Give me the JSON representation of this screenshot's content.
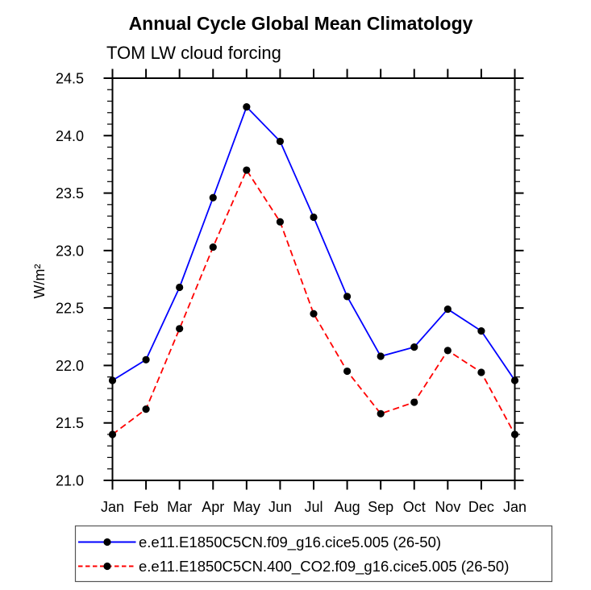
{
  "chart_data": {
    "type": "line",
    "title": "Annual Cycle Global Mean Climatology",
    "subtitle": "TOM LW cloud forcing",
    "ylabel": "W/m²",
    "categories": [
      "Jan",
      "Feb",
      "Mar",
      "Apr",
      "May",
      "Jun",
      "Jul",
      "Aug",
      "Sep",
      "Oct",
      "Nov",
      "Dec",
      "Jan"
    ],
    "ylim": [
      21.0,
      24.5
    ],
    "y_major_step": 0.5,
    "y_minor_step": 0.1,
    "grid": false,
    "legend_position": "bottom",
    "frame_color": "#000000",
    "marker_color": "#000000",
    "series": [
      {
        "name": "e.e11.E1850C5CN.f09_g16.cice5.005 (26-50)",
        "line_color": "#0000ff",
        "line_style": "solid",
        "marker": "filled-circle",
        "values": [
          21.87,
          22.05,
          22.68,
          23.46,
          24.25,
          23.95,
          23.29,
          22.6,
          22.08,
          22.16,
          22.49,
          22.3,
          21.87
        ]
      },
      {
        "name": "e.e11.E1850C5CN.400_CO2.f09_g16.cice5.005 (26-50)",
        "line_color": "#ff0000",
        "line_style": "dashed",
        "marker": "filled-circle",
        "values": [
          21.4,
          21.62,
          22.32,
          23.03,
          23.7,
          23.25,
          22.45,
          21.95,
          21.58,
          21.68,
          22.13,
          21.94,
          21.4
        ]
      }
    ]
  }
}
